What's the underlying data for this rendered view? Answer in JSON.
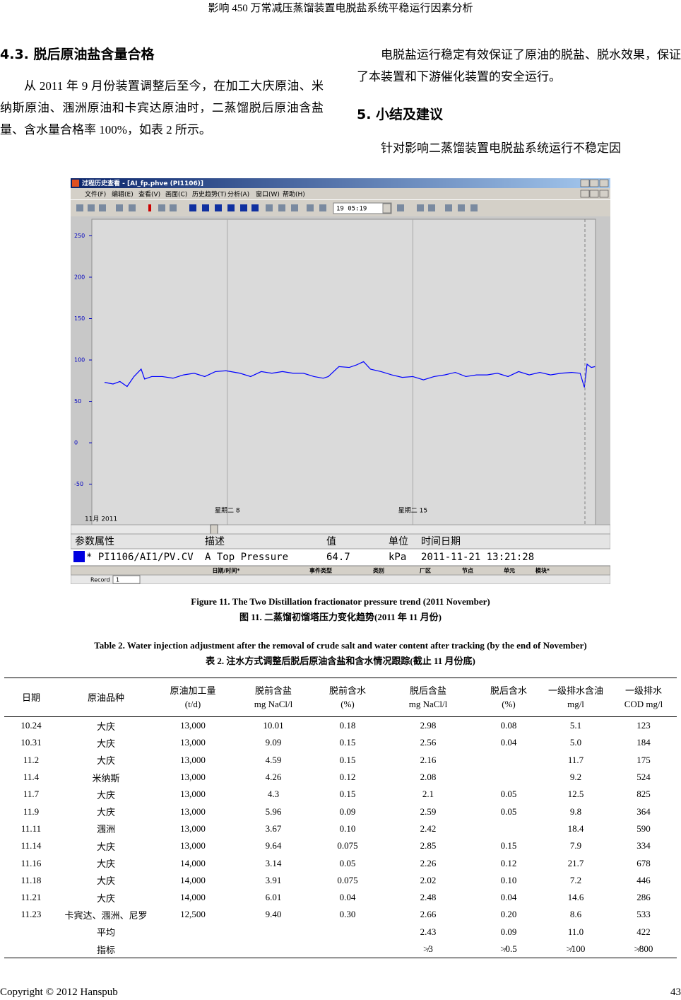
{
  "header": {
    "running_title": "影响 450 万常减压蒸馏装置电脱盐系统平稳运行因素分析"
  },
  "left_column": {
    "heading": "4.3.  脱后原油盐含量合格",
    "paragraph": "从 2011 年 9 月份装置调整后至今，在加工大庆原油、米纳斯原油、涠洲原油和卡宾达原油时，二蒸馏脱后原油含盐量、含水量合格率 100%，如表 2 所示。"
  },
  "right_column": {
    "paragraph_1": "电脱盐运行稳定有效保证了原油的脱盐、脱水效果，保证了本装置和下游催化装置的安全运行。",
    "heading": "5.  小结及建议",
    "paragraph_2": "针对影响二蒸馏装置电脱盐系统运行不稳定因"
  },
  "figure": {
    "window": {
      "title": "过程历史查看 - [AI_fp.phve (PI1106)]",
      "menu": [
        "文件(F)",
        "编辑(E)",
        "查看(V)",
        "画面(C)",
        "历史趋势(T)",
        "分析(A)",
        "窗口(W)",
        "帮助(H)"
      ],
      "time_field": "19 05:19",
      "status_headers": [
        "参数属性",
        "描述",
        "值",
        "单位",
        "时间日期"
      ],
      "status_row": [
        "* PI1106/AI1/PV.CV",
        "A Top Pressure",
        "64.7",
        "kPa",
        "2011-11-21 13:21:28"
      ],
      "event_headers": [
        "日期/时间*",
        "事件类型",
        "类别",
        "厂区",
        "节点",
        "单元",
        "模块*"
      ],
      "record_label": "Record",
      "record_value": "1"
    },
    "chart_data": {
      "type": "line",
      "annotation": "11月 2011",
      "color": "#0000ff",
      "grid": true,
      "x": [
        3.37,
        3.69,
        3.95,
        4.22,
        4.48,
        4.75,
        4.88,
        5.15,
        5.55,
        5.95,
        6.35,
        6.75,
        7.15,
        7.55,
        7.95,
        8.48,
        8.88,
        9.28,
        9.68,
        10.08,
        10.48,
        10.87,
        11.27,
        11.62,
        11.81,
        12.21,
        12.6,
        12.87,
        13.14,
        13.4,
        13.8,
        14.2,
        14.6,
        15,
        15.4,
        15.8,
        16.2,
        16.6,
        17,
        17.4,
        17.8,
        18.19,
        18.59,
        18.99,
        19.39,
        19.79,
        20.19,
        20.59,
        20.99,
        21.31,
        21.47,
        21.57,
        21.73,
        21.87
      ],
      "values": [
        73,
        71,
        74,
        68,
        80,
        89,
        77,
        80,
        80,
        78,
        82,
        84,
        80,
        86,
        87,
        84,
        80,
        86,
        84,
        86,
        84,
        84,
        80,
        78,
        80,
        92,
        91,
        94,
        98,
        89,
        86,
        82,
        79,
        80,
        76,
        80,
        82,
        85,
        80,
        82,
        82,
        84,
        80,
        86,
        82,
        85,
        82,
        84,
        85,
        84,
        67,
        95,
        91,
        92
      ],
      "xlim": [
        2.89,
        21.89
      ],
      "xticks": [
        {
          "value": 8,
          "label": "星期二 8"
        },
        {
          "value": 15,
          "label": "星期二 15"
        }
      ],
      "ylim": [
        -99,
        270
      ],
      "yticks": [
        250,
        200,
        150,
        100,
        50,
        0,
        -50
      ]
    },
    "caption_en": "Figure 11. The Two Distillation fractionator pressure trend (2011 November)",
    "caption_zh": "图 11.  二蒸馏初馏塔压力变化趋势(2011 年 11 月份)"
  },
  "table": {
    "caption_en": "Table 2. Water injection adjustment after the removal of crude salt and water content after tracking (by the end of November)",
    "caption_zh": "表 2.  注水方式调整后脱后原油含盐和含水情况跟踪(截止 11 月份底)",
    "headers": [
      [
        "日期"
      ],
      [
        "原油品种"
      ],
      [
        "原油加工量",
        "(t/d)"
      ],
      [
        "脱前含盐",
        "mg NaCl/l"
      ],
      [
        "脱前含水",
        "(%)"
      ],
      [
        "脱后含盐",
        "mg NaCl/l"
      ],
      [
        "脱后含水",
        "(%)"
      ],
      [
        "一级排水含油",
        "mg/l"
      ],
      [
        "一级排水",
        "COD mg/l"
      ]
    ],
    "rows": [
      [
        "10.24",
        "大庆",
        "13,000",
        "10.01",
        "0.18",
        "2.98",
        "0.08",
        "5.1",
        "123"
      ],
      [
        "10.31",
        "大庆",
        "13,000",
        "9.09",
        "0.15",
        "2.56",
        "0.04",
        "5.0",
        "184"
      ],
      [
        "11.2",
        "大庆",
        "13,000",
        "4.59",
        "0.15",
        "2.16",
        null,
        "11.7",
        "175"
      ],
      [
        "11.4",
        "米纳斯",
        "13,000",
        "4.26",
        "0.12",
        "2.08",
        null,
        "9.2",
        "524"
      ],
      [
        "11.7",
        "大庆",
        "13,000",
        "4.3",
        "0.15",
        "2.1",
        "0.05",
        "12.5",
        "825"
      ],
      [
        "11.9",
        "大庆",
        "13,000",
        "5.96",
        "0.09",
        "2.59",
        "0.05",
        "9.8",
        "364"
      ],
      [
        "11.11",
        "涠洲",
        "13,000",
        "3.67",
        "0.10",
        "2.42",
        null,
        "18.4",
        "590"
      ],
      [
        "11.14",
        "大庆",
        "13,000",
        "9.64",
        "0.075",
        "2.85",
        "0.15",
        "7.9",
        "334"
      ],
      [
        "11.16",
        "大庆",
        "14,000",
        "3.14",
        "0.05",
        "2.26",
        "0.12",
        "21.7",
        "678"
      ],
      [
        "11.18",
        "大庆",
        "14,000",
        "3.91",
        "0.075",
        "2.02",
        "0.10",
        "7.2",
        "446"
      ],
      [
        "11.21",
        "大庆",
        "14,000",
        "6.01",
        "0.04",
        "2.48",
        "0.04",
        "14.6",
        "286"
      ],
      [
        "11.23",
        "卡宾达、涠洲、尼罗",
        "12,500",
        "9.40",
        "0.30",
        "2.66",
        "0.20",
        "8.6",
        "533"
      ],
      [
        null,
        "平均",
        null,
        null,
        null,
        "2.43",
        "0.09",
        "11.0",
        "422"
      ],
      [
        null,
        "指标",
        null,
        null,
        null,
        "≯3",
        "≯0.5",
        "≯100",
        "≯800"
      ]
    ]
  },
  "footer": {
    "copyright": "Copyright © 2012 Hanspub",
    "page_number": "43"
  }
}
